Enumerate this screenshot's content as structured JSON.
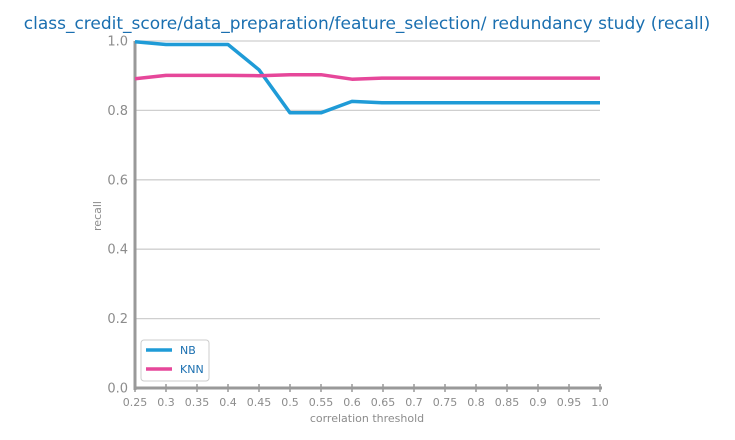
{
  "chart_data": {
    "type": "line",
    "title": "class_credit_score/data_preparation/feature_selection/ redundancy study (recall)",
    "xlabel": "correlation threshold",
    "ylabel": "recall",
    "x": [
      0.25,
      0.3,
      0.35,
      0.4,
      0.45,
      0.5,
      0.55,
      0.6,
      0.65,
      0.7,
      0.75,
      0.8,
      0.85,
      0.9,
      0.95,
      1.0
    ],
    "x_tick_labels": [
      "0.25",
      "0.3",
      "0.35",
      "0.4",
      "0.45",
      "0.5",
      "0.55",
      "0.6",
      "0.65",
      "0.7",
      "0.75",
      "0.8",
      "0.85",
      "0.9",
      "0.95",
      "1.0"
    ],
    "y_tick_labels": [
      "0.0",
      "0.2",
      "0.4",
      "0.6",
      "0.8",
      "1.0"
    ],
    "xlim": [
      0.25,
      1.0
    ],
    "ylim": [
      0.0,
      1.0
    ],
    "grid": "horizontal",
    "legend_position": "lower-left",
    "series": [
      {
        "name": "NB",
        "color": "#1f9bd7",
        "values": [
          0.998,
          0.99,
          0.99,
          0.99,
          0.917,
          0.793,
          0.793,
          0.826,
          0.822,
          0.822,
          0.822,
          0.822,
          0.822,
          0.822,
          0.822,
          0.822
        ]
      },
      {
        "name": "KNN",
        "color": "#e6479a",
        "values": [
          0.891,
          0.901,
          0.901,
          0.901,
          0.9,
          0.903,
          0.903,
          0.89,
          0.893,
          0.893,
          0.893,
          0.893,
          0.893,
          0.893,
          0.893,
          0.893
        ]
      }
    ]
  }
}
